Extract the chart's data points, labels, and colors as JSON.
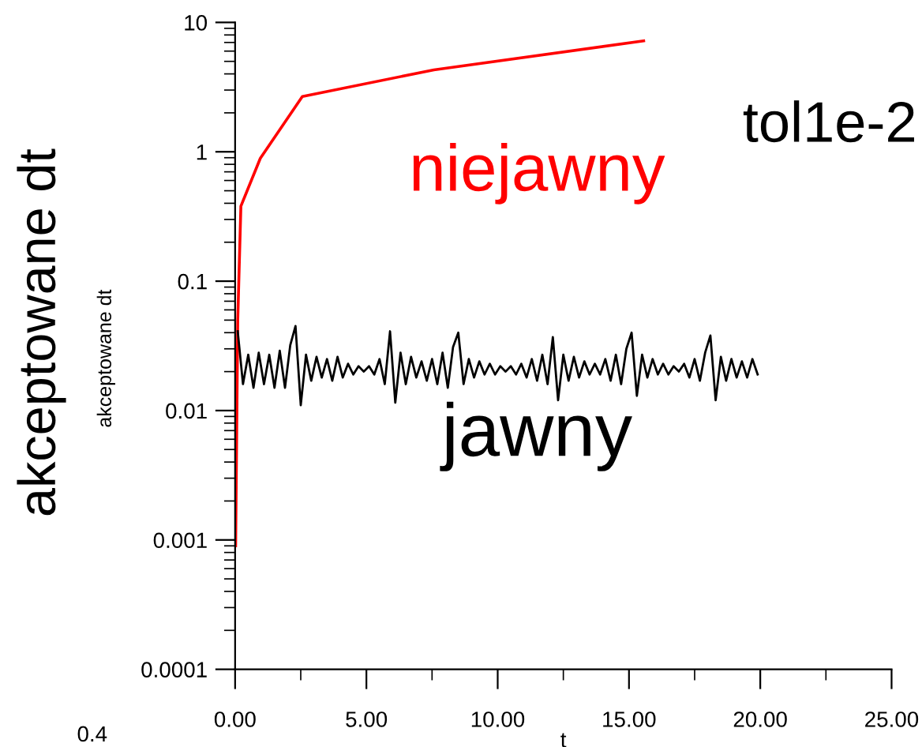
{
  "chart_data": {
    "type": "line",
    "xlabel": "t",
    "ylabel": "akceptowane dt",
    "annotations": [
      "tol1e-2",
      "akceptowane dt",
      "0.4"
    ],
    "log": "y",
    "grid": false,
    "legend": false,
    "marker": "none",
    "line_style": "solid",
    "xlim": [
      0,
      25
    ],
    "xticks": [
      {
        "value": 0,
        "label": "0.00"
      },
      {
        "value": 5,
        "label": "5.00"
      },
      {
        "value": 10,
        "label": "10.00"
      },
      {
        "value": 15,
        "label": "15.00"
      },
      {
        "value": 20,
        "label": "20.00"
      },
      {
        "value": 25,
        "label": "25.00"
      }
    ],
    "ylim": [
      0.0001,
      10
    ],
    "yticks": [
      0.0001,
      0.001,
      0.01,
      0.1,
      1,
      10
    ],
    "series": [
      {
        "name": "niejawny",
        "color": "#ff0000",
        "x": [
          0.02,
          0.1,
          0.22,
          0.96,
          2.56,
          7.57,
          15.56
        ],
        "values": [
          0.0009,
          0.05,
          0.38,
          0.89,
          2.67,
          4.3,
          7.2
        ]
      },
      {
        "name": "jawny",
        "color": "#000000",
        "x": [
          0.1,
          0.3,
          0.5,
          0.7,
          0.9,
          1.1,
          1.3,
          1.5,
          1.7,
          1.9,
          2.1,
          2.3,
          2.5,
          2.7,
          2.9,
          3.1,
          3.3,
          3.5,
          3.7,
          3.9,
          4.1,
          4.3,
          4.5,
          4.7,
          4.9,
          5.1,
          5.3,
          5.5,
          5.7,
          5.9,
          6.1,
          6.3,
          6.5,
          6.7,
          6.9,
          7.1,
          7.3,
          7.5,
          7.7,
          7.9,
          8.1,
          8.3,
          8.5,
          8.7,
          8.9,
          9.1,
          9.3,
          9.5,
          9.7,
          9.9,
          10.1,
          10.3,
          10.5,
          10.7,
          10.9,
          11.1,
          11.3,
          11.5,
          11.7,
          11.9,
          12.1,
          12.3,
          12.5,
          12.7,
          12.9,
          13.1,
          13.3,
          13.5,
          13.7,
          13.9,
          14.1,
          14.3,
          14.5,
          14.7,
          14.9,
          15.1,
          15.3,
          15.5,
          15.7,
          15.9,
          16.1,
          16.3,
          16.5,
          16.7,
          16.9,
          17.1,
          17.3,
          17.5,
          17.7,
          17.9,
          18.1,
          18.3,
          18.5,
          18.7,
          18.9,
          19.1,
          19.3,
          19.5,
          19.7,
          19.9
        ],
        "values": [
          0.041,
          0.016,
          0.027,
          0.015,
          0.028,
          0.016,
          0.027,
          0.015,
          0.029,
          0.015,
          0.032,
          0.045,
          0.011,
          0.027,
          0.017,
          0.026,
          0.018,
          0.025,
          0.017,
          0.026,
          0.018,
          0.023,
          0.019,
          0.022,
          0.02,
          0.022,
          0.019,
          0.025,
          0.016,
          0.041,
          0.0115,
          0.028,
          0.016,
          0.026,
          0.018,
          0.024,
          0.017,
          0.025,
          0.016,
          0.028,
          0.015,
          0.031,
          0.04,
          0.016,
          0.025,
          0.018,
          0.024,
          0.019,
          0.023,
          0.019,
          0.022,
          0.02,
          0.022,
          0.019,
          0.023,
          0.018,
          0.025,
          0.017,
          0.027,
          0.016,
          0.037,
          0.012,
          0.027,
          0.017,
          0.026,
          0.018,
          0.024,
          0.019,
          0.023,
          0.019,
          0.025,
          0.017,
          0.027,
          0.016,
          0.03,
          0.04,
          0.013,
          0.027,
          0.018,
          0.025,
          0.019,
          0.023,
          0.019,
          0.022,
          0.02,
          0.023,
          0.018,
          0.025,
          0.017,
          0.028,
          0.038,
          0.012,
          0.026,
          0.017,
          0.025,
          0.018,
          0.024,
          0.018,
          0.025,
          0.019
        ]
      }
    ]
  }
}
